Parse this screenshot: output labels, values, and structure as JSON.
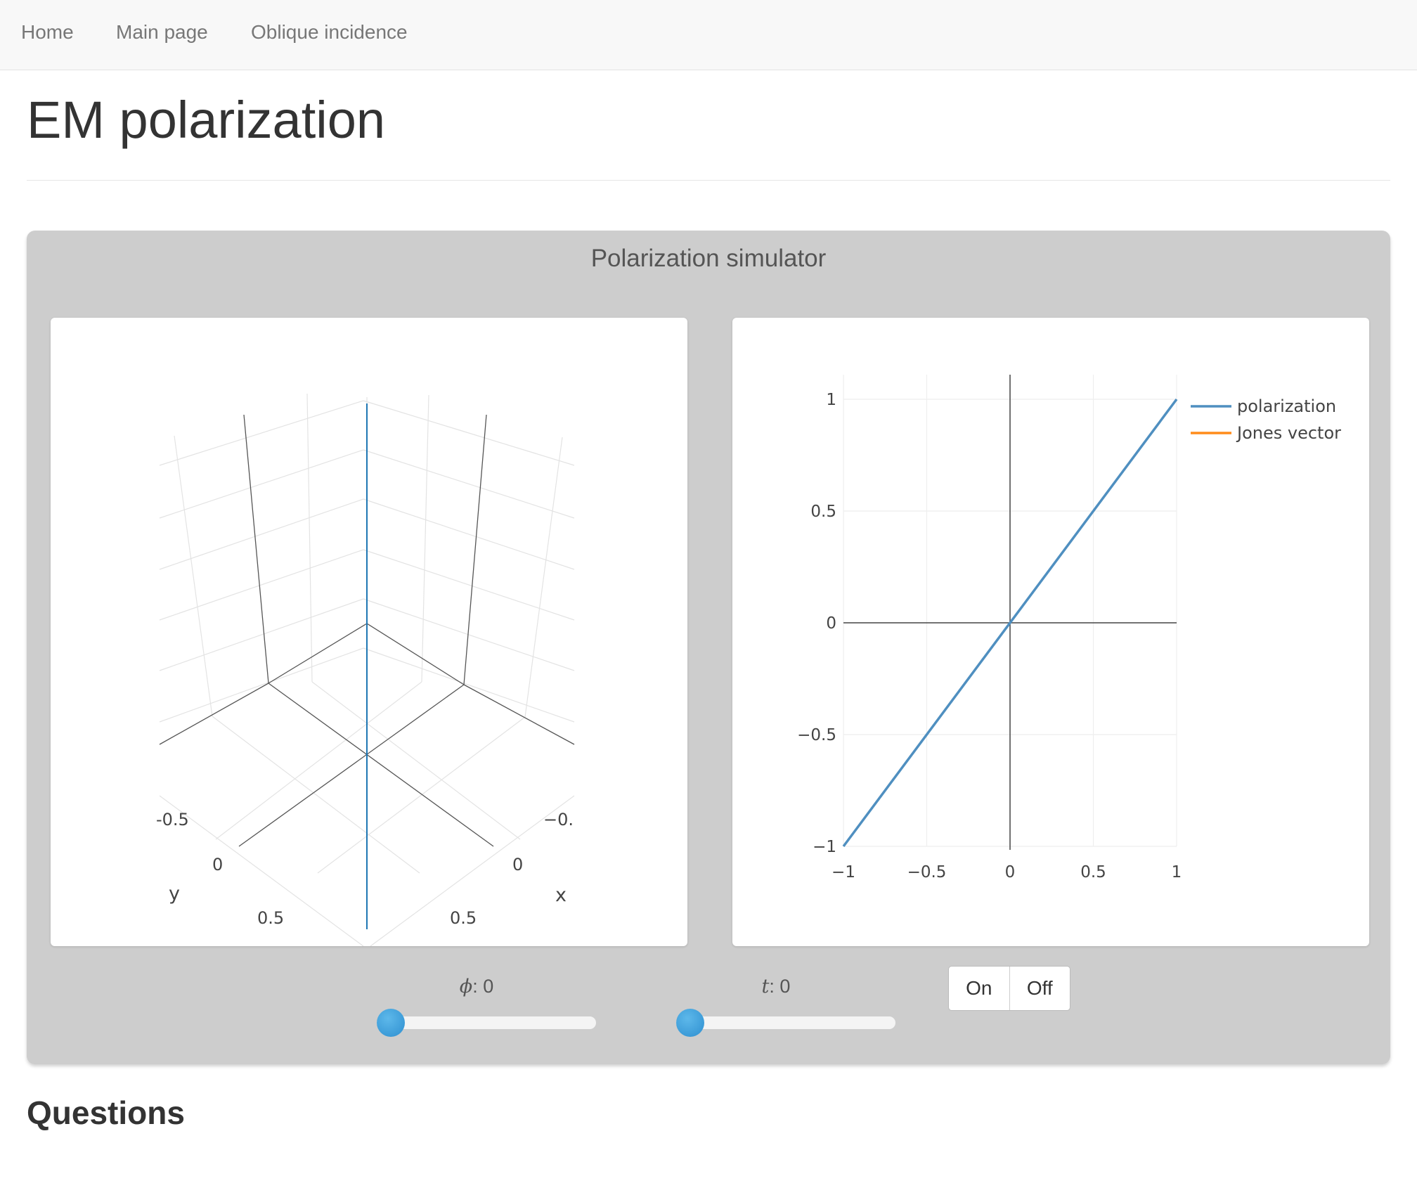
{
  "nav": {
    "items": [
      {
        "label": "Home"
      },
      {
        "label": "Main page"
      },
      {
        "label": "Oblique incidence"
      }
    ]
  },
  "page_title": "EM polarization",
  "simulator": {
    "title": "Polarization simulator",
    "plot3d": {
      "y_axis_label": "y",
      "x_axis_label": "x",
      "y_ticks": [
        "-0.5",
        "0",
        "0.5"
      ],
      "x_ticks": [
        "−0.",
        "0",
        "0.5"
      ],
      "trace_color": "#1f77b4"
    },
    "sliders": [
      {
        "symbol": "ϕ",
        "suffix": ": 0",
        "value": 0
      },
      {
        "symbol": "t",
        "suffix": ": 0",
        "value": 0
      }
    ],
    "toggle": {
      "on_label": "On",
      "off_label": "Off"
    }
  },
  "questions_heading": "Questions",
  "chart_data": {
    "type": "line",
    "xlim": [
      -1,
      1
    ],
    "ylim": [
      -1,
      1
    ],
    "x_ticks": [
      -1,
      -0.5,
      0,
      0.5,
      1
    ],
    "y_ticks": [
      -1,
      -0.5,
      0,
      0.5,
      1
    ],
    "x_tick_labels": [
      "−1",
      "−0.5",
      "0",
      "0.5",
      "1"
    ],
    "y_tick_labels": [
      "−1",
      "−0.5",
      "0",
      "0.5",
      "1"
    ],
    "grid": true,
    "legend_position": "top-right",
    "series": [
      {
        "name": "polarization",
        "color": "#4f8fc0",
        "x": [
          -1,
          1
        ],
        "y": [
          -1,
          1
        ]
      },
      {
        "name": "Jones vector",
        "color": "#ff8c1a",
        "x": [],
        "y": []
      }
    ]
  }
}
